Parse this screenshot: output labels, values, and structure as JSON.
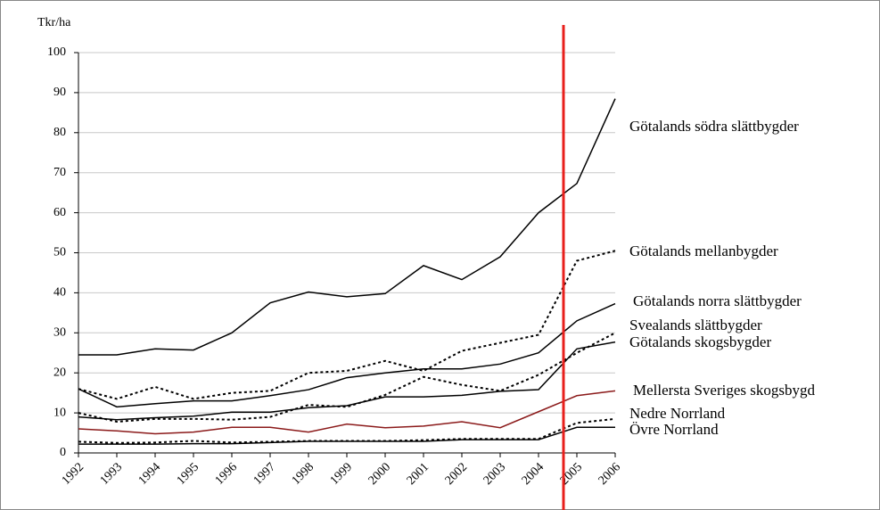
{
  "chart_data": {
    "type": "line",
    "y_label": "Tkr/ha",
    "categories": [
      "1992",
      "1993",
      "1994",
      "1995",
      "1996",
      "1997",
      "1998",
      "1999",
      "2000",
      "2001",
      "2002",
      "2003",
      "2004",
      "2005",
      "2006"
    ],
    "ylim": [
      0,
      100
    ],
    "yticks": [
      0,
      10,
      20,
      30,
      40,
      50,
      60,
      70,
      80,
      90,
      100
    ],
    "grid": true,
    "series": [
      {
        "name": "Götalands södra slättbygder",
        "color": "#000000",
        "dash": "solid",
        "values": [
          24.5,
          24.5,
          26,
          25.7,
          30,
          37.5,
          40.2,
          39,
          39.8,
          46.8,
          43.3,
          49,
          60,
          67.3,
          88.5
        ]
      },
      {
        "name": "Götalands mellanbygder",
        "color": "#000000",
        "dash": "dotted",
        "values": [
          16,
          13.5,
          16.5,
          13.5,
          15,
          15.5,
          20,
          20.5,
          23,
          20.5,
          25.5,
          27.5,
          29.5,
          48,
          50.5
        ]
      },
      {
        "name": "Götalands norra slättbygder",
        "color": "#000000",
        "dash": "solid",
        "values": [
          16,
          11.5,
          12.3,
          13,
          13,
          14.3,
          15.8,
          18.8,
          20,
          21,
          21,
          22.2,
          25,
          33,
          37.3
        ]
      },
      {
        "name": "Svealands slättbygder",
        "color": "#000000",
        "dash": "dotted",
        "values": [
          10,
          7.8,
          8.5,
          8.5,
          8.3,
          9,
          12,
          11.5,
          14.5,
          19,
          17,
          15.5,
          19.5,
          25,
          30
        ]
      },
      {
        "name": "Götalands skogsbygder",
        "color": "#000000",
        "dash": "solid",
        "values": [
          9,
          8.3,
          8.8,
          9.2,
          10.2,
          10.2,
          11.3,
          11.8,
          14,
          14,
          14.4,
          15.4,
          15.8,
          26,
          27.7
        ]
      },
      {
        "name": "Mellersta Sveriges skogsbygd",
        "color": "#8b1a1a",
        "dash": "solid",
        "values": [
          6,
          5.5,
          4.8,
          5.2,
          6.4,
          6.4,
          5.2,
          7.2,
          6.3,
          6.7,
          7.8,
          6.3,
          10.3,
          14.3,
          15.5
        ]
      },
      {
        "name": "Nedre Norrland",
        "color": "#000000",
        "dash": "dotted",
        "values": [
          2.8,
          2.5,
          2.6,
          3,
          2.6,
          2.8,
          3,
          3,
          3,
          3.2,
          3.5,
          3.5,
          3.5,
          7.5,
          8.5
        ]
      },
      {
        "name": "Övre Norrland",
        "color": "#000000",
        "dash": "solid",
        "values": [
          2.2,
          2.2,
          2.2,
          2.3,
          2.3,
          2.6,
          2.9,
          2.9,
          2.9,
          2.9,
          3.3,
          3.3,
          3.3,
          6.4,
          6.4
        ]
      }
    ]
  }
}
